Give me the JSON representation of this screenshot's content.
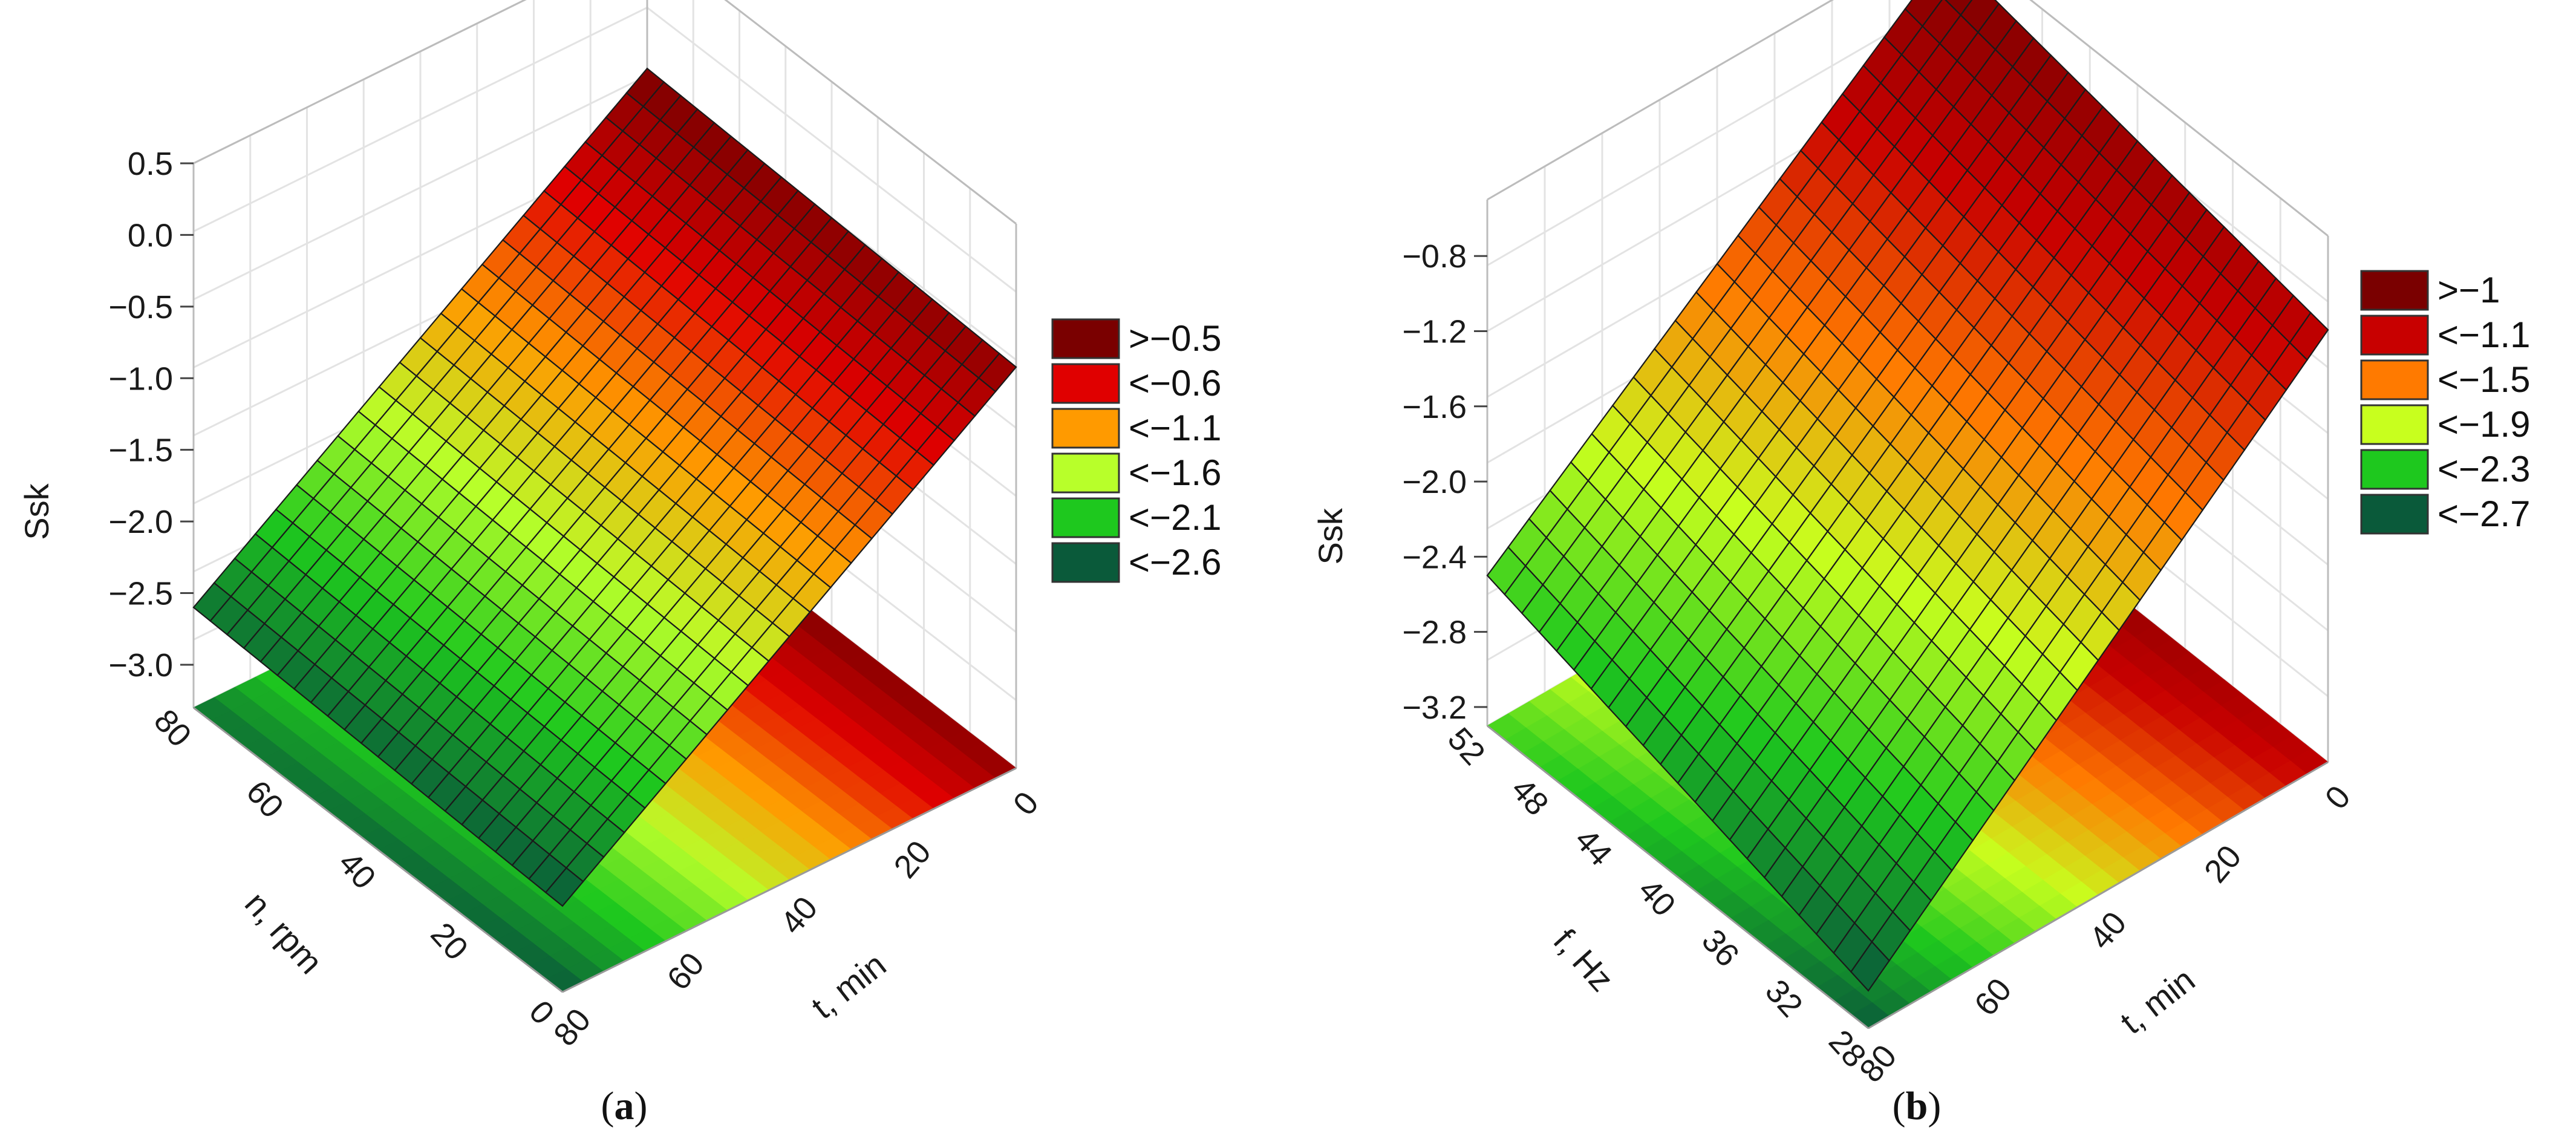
{
  "chart_data": [
    {
      "type": "surface3d",
      "panel_label": "a",
      "z_axis": {
        "label": "Ssk",
        "ticks": [
          "0.5",
          "0.0",
          "−0.5",
          "−1.0",
          "−1.5",
          "−2.0",
          "−2.5",
          "−3.0"
        ],
        "range": [
          -3.3,
          0.5
        ]
      },
      "x_axis": {
        "label": "t, min",
        "ticks": [
          "80",
          "60",
          "40",
          "20",
          "0"
        ],
        "range": [
          0,
          80
        ]
      },
      "y_axis": {
        "label": "n, rpm",
        "ticks": [
          "80",
          "60",
          "40",
          "20",
          "0"
        ],
        "range": [
          0,
          80
        ]
      },
      "legend": [
        {
          "label": ">−0.5",
          "color": "#7a0000"
        },
        {
          "label": "<−0.6",
          "color": "#e00000"
        },
        {
          "label": "<−1.1",
          "color": "#ff9a00"
        },
        {
          "label": "<−1.6",
          "color": "#b8ff2a"
        },
        {
          "label": "<−2.1",
          "color": "#1ec81e"
        },
        {
          "label": "<−2.6",
          "color": "#0a5a3a"
        }
      ],
      "surface": {
        "corners": [
          {
            "t": 0,
            "v": 80,
            "z": -0.4
          },
          {
            "t": 0,
            "v": 0,
            "z": -0.5
          },
          {
            "t": 80,
            "v": 0,
            "z": -2.7
          },
          {
            "t": 80,
            "v": 80,
            "z": -2.6
          }
        ]
      }
    },
    {
      "type": "surface3d",
      "panel_label": "b",
      "z_axis": {
        "label": "Ssk",
        "ticks": [
          "−0.8",
          "−1.2",
          "−1.6",
          "−2.0",
          "−2.4",
          "−2.8",
          "−3.2"
        ],
        "range": [
          -3.3,
          -0.5
        ]
      },
      "x_axis": {
        "label": "t, min",
        "ticks": [
          "80",
          "60",
          "40",
          "20",
          "0"
        ],
        "range": [
          0,
          80
        ]
      },
      "y_axis": {
        "label": "f, Hz",
        "ticks": [
          "52",
          "48",
          "44",
          "40",
          "36",
          "32",
          "28"
        ],
        "range": [
          28,
          52
        ]
      },
      "legend": [
        {
          "label": ">−1",
          "color": "#7a0000"
        },
        {
          "label": "<−1.1",
          "color": "#c80000"
        },
        {
          "label": "<−1.5",
          "color": "#ff7a00"
        },
        {
          "label": "<−1.9",
          "color": "#c8ff1e"
        },
        {
          "label": "<−2.3",
          "color": "#1ec81e"
        },
        {
          "label": "<−2.7",
          "color": "#0a5a3a"
        }
      ],
      "surface": {
        "corners": [
          {
            "t": 0,
            "v": 52,
            "z": -0.6
          },
          {
            "t": 0,
            "v": 28,
            "z": -1.0
          },
          {
            "t": 80,
            "v": 28,
            "z": -3.1
          },
          {
            "t": 80,
            "v": 52,
            "z": -2.5
          }
        ]
      }
    }
  ]
}
